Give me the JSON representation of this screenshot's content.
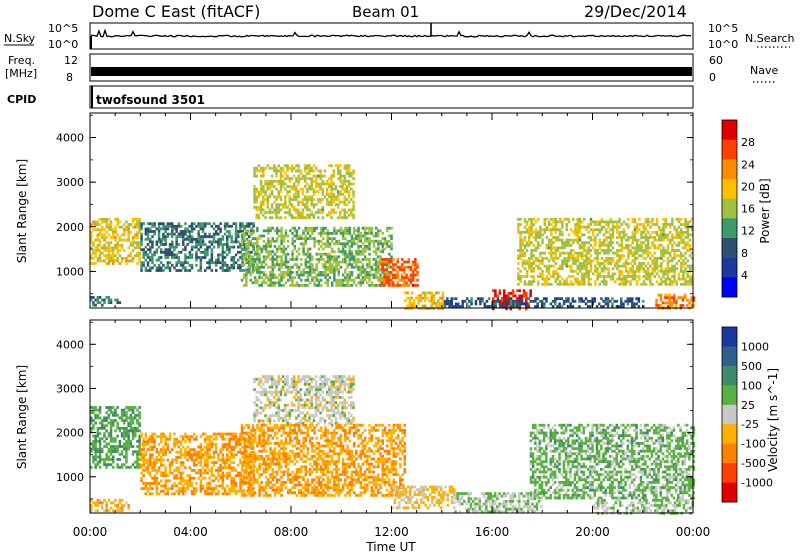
{
  "header": {
    "station": "Dome C East (fitACF)",
    "beam": "Beam 01",
    "date": "29/Dec/2014"
  },
  "top_panels": {
    "nsky_label": "N.Sky",
    "nsky_ticks": [
      "10^5",
      "10^0"
    ],
    "nsearch_label": "N.Search",
    "nsearch_ticks": [
      "10^5",
      "10^0"
    ],
    "freq_label": "Freq.",
    "freq_unit": "[MHz]",
    "freq_ticks": [
      "12",
      "8"
    ],
    "nave_label": "Nave",
    "nave_ticks": [
      "60",
      "0"
    ],
    "cpid_label": "CPID",
    "cpid_value": "twofsound 3501",
    "freq_mhz": 10.5,
    "nave": 20
  },
  "chart_data": [
    {
      "type": "heatmap",
      "title": "",
      "xlabel": "Time UT",
      "ylabel": "Slant Range [km]",
      "x_ticks": [
        "00:00",
        "04:00",
        "08:00",
        "12:00",
        "16:00",
        "20:00",
        "00:00"
      ],
      "xlim": [
        0,
        24
      ],
      "y_ticks": [
        "1000",
        "2000",
        "3000",
        "4000"
      ],
      "ylim": [
        180,
        4550
      ],
      "colorbar_label": "Power [dB]",
      "colorbar_ticks": [
        "28",
        "24",
        "20",
        "16",
        "12",
        "8",
        "4"
      ],
      "colorbar_colors": [
        "#e00000",
        "#ff4000",
        "#ff8c00",
        "#ffc000",
        "#a0c040",
        "#3f9a6a",
        "#305070",
        "#1a3aa0",
        "#0000ff"
      ],
      "clim": [
        0,
        30
      ],
      "echo_regions": [
        {
          "t0": 0.0,
          "t1": 2.0,
          "r0": 1200,
          "r1": 2200,
          "value": 18
        },
        {
          "t0": 0.0,
          "t1": 1.2,
          "r0": 250,
          "r1": 450,
          "value": 10
        },
        {
          "t0": 2.0,
          "t1": 6.5,
          "r0": 1000,
          "r1": 2100,
          "value": 10
        },
        {
          "t0": 6.5,
          "t1": 10.5,
          "r0": 2200,
          "r1": 3400,
          "value": 16
        },
        {
          "t0": 6.0,
          "t1": 12.0,
          "r0": 700,
          "r1": 2000,
          "value": 14
        },
        {
          "t0": 11.5,
          "t1": 13.0,
          "r0": 700,
          "r1": 1300,
          "value": 24
        },
        {
          "t0": 12.5,
          "t1": 14.0,
          "r0": 200,
          "r1": 550,
          "value": 18
        },
        {
          "t0": 16.0,
          "t1": 17.5,
          "r0": 180,
          "r1": 600,
          "value": 28
        },
        {
          "t0": 14.0,
          "t1": 22.0,
          "r0": 200,
          "r1": 420,
          "value": 8
        },
        {
          "t0": 17.0,
          "t1": 24.0,
          "r0": 700,
          "r1": 2200,
          "value": 16
        },
        {
          "t0": 22.5,
          "t1": 24.0,
          "r0": 180,
          "r1": 500,
          "value": 22
        }
      ]
    },
    {
      "type": "heatmap",
      "title": "",
      "xlabel": "Time UT",
      "ylabel": "Slant Range [km]",
      "x_ticks": [
        "00:00",
        "04:00",
        "08:00",
        "12:00",
        "16:00",
        "20:00",
        "00:00"
      ],
      "xlim": [
        0,
        24
      ],
      "y_ticks": [
        "1000",
        "2000",
        "3000",
        "4000"
      ],
      "ylim": [
        180,
        4550
      ],
      "colorbar_label": "Velocity [m s^-1]",
      "colorbar_ticks": [
        "1000",
        "500",
        "100",
        "25",
        "-25",
        "-100",
        "-500",
        "-1000"
      ],
      "colorbar_colors": [
        "#1a3aa0",
        "#2f5f8f",
        "#3f8a6a",
        "#5ab040",
        "#c8c8c8",
        "#ffb000",
        "#ff8000",
        "#ff4000",
        "#e00000"
      ],
      "clim": [
        -1000,
        1000
      ],
      "echo_regions": [
        {
          "t0": 0.0,
          "t1": 2.0,
          "r0": 1200,
          "r1": 2600,
          "value": 300
        },
        {
          "t0": 0.0,
          "t1": 1.5,
          "r0": 250,
          "r1": 500,
          "value": -200
        },
        {
          "t0": 2.0,
          "t1": 6.5,
          "r0": 600,
          "r1": 2000,
          "value": -300
        },
        {
          "t0": 6.5,
          "t1": 10.5,
          "r0": 2200,
          "r1": 3300,
          "value": 0
        },
        {
          "t0": 6.0,
          "t1": 12.5,
          "r0": 600,
          "r1": 2200,
          "value": -300
        },
        {
          "t0": 12.0,
          "t1": 14.5,
          "r0": 300,
          "r1": 800,
          "value": -150
        },
        {
          "t0": 14.5,
          "t1": 18.0,
          "r0": 180,
          "r1": 650,
          "value": 100
        },
        {
          "t0": 17.5,
          "t1": 24.0,
          "r0": 500,
          "r1": 2200,
          "value": 200
        },
        {
          "t0": 20.0,
          "t1": 24.0,
          "r0": 180,
          "r1": 500,
          "value": 80
        }
      ]
    }
  ]
}
